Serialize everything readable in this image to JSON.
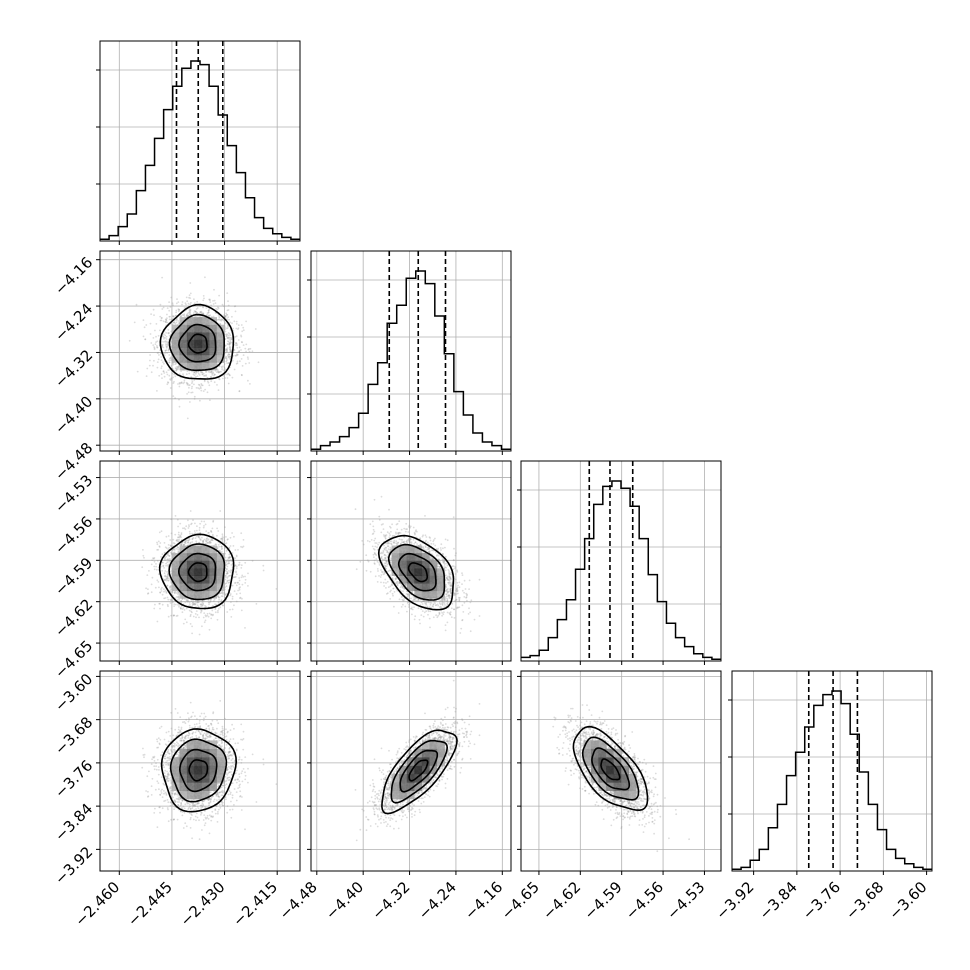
{
  "chart_data": {
    "type": "corner",
    "n_params": 4,
    "param_labels": [
      "",
      "",
      "",
      ""
    ],
    "tick_labels": [
      [
        "−2.460",
        "−2.445",
        "−2.430",
        "−2.415"
      ],
      [
        "−4.48",
        "−4.40",
        "−4.32",
        "−4.24",
        "−4.16"
      ],
      [
        "−4.65",
        "−4.62",
        "−4.59",
        "−4.56",
        "−4.53"
      ],
      [
        "−3.92",
        "−3.84",
        "−3.76",
        "−3.68",
        "−3.60"
      ]
    ],
    "tick_values": [
      [
        -2.46,
        -2.445,
        -2.43,
        -2.415
      ],
      [
        -4.48,
        -4.4,
        -4.32,
        -4.24,
        -4.16
      ],
      [
        -4.65,
        -4.62,
        -4.59,
        -4.56,
        -4.53
      ],
      [
        -3.92,
        -3.84,
        -3.76,
        -3.68,
        -3.6
      ]
    ],
    "axis_ranges": [
      [
        -2.4655,
        -2.4085
      ],
      [
        -4.49,
        -4.145
      ],
      [
        -4.663,
        -4.518
      ],
      [
        -3.96,
        -3.59
      ]
    ],
    "histograms": [
      {
        "bin_edges_range": [
          -2.4655,
          -2.4085
        ],
        "heights": [
          0.01,
          0.03,
          0.08,
          0.15,
          0.28,
          0.42,
          0.57,
          0.73,
          0.86,
          0.96,
          1.0,
          0.98,
          0.86,
          0.7,
          0.53,
          0.38,
          0.24,
          0.13,
          0.07,
          0.04,
          0.02,
          0.01
        ],
        "quantiles": [
          -2.4437,
          -2.4375,
          -2.4305
        ]
      },
      {
        "bin_edges_range": [
          -4.49,
          -4.145
        ],
        "heights": [
          0.01,
          0.03,
          0.05,
          0.08,
          0.13,
          0.21,
          0.37,
          0.49,
          0.71,
          0.81,
          0.96,
          1.0,
          0.93,
          0.75,
          0.54,
          0.33,
          0.2,
          0.1,
          0.05,
          0.03,
          0.01
        ],
        "quantiles": [
          -4.355,
          -4.305,
          -4.258
        ]
      },
      {
        "bin_edges_range": [
          -4.663,
          -4.518
        ],
        "heights": [
          0.02,
          0.03,
          0.06,
          0.13,
          0.23,
          0.34,
          0.51,
          0.68,
          0.87,
          0.97,
          1.0,
          0.96,
          0.86,
          0.68,
          0.48,
          0.33,
          0.21,
          0.13,
          0.08,
          0.04,
          0.02,
          0.01
        ],
        "quantiles": [
          -4.6135,
          -4.5985,
          -4.582
        ]
      },
      {
        "bin_edges_range": [
          -3.96,
          -3.59
        ],
        "heights": [
          0.01,
          0.02,
          0.06,
          0.12,
          0.24,
          0.37,
          0.53,
          0.66,
          0.8,
          0.92,
          0.98,
          1.0,
          0.93,
          0.76,
          0.55,
          0.37,
          0.23,
          0.12,
          0.07,
          0.04,
          0.02,
          0.01
        ],
        "quantiles": [
          -3.818,
          -3.773,
          -3.728
        ]
      }
    ],
    "pairs": [
      {
        "x_param": 0,
        "y_param": 1,
        "center": [
          -2.4375,
          -4.305
        ],
        "sd": [
          0.0052,
          0.032
        ],
        "corr": 0.0
      },
      {
        "x_param": 0,
        "y_param": 2,
        "center": [
          -2.4375,
          -4.5985
        ],
        "sd": [
          0.0052,
          0.0134
        ],
        "corr": 0.0
      },
      {
        "x_param": 1,
        "y_param": 2,
        "center": [
          -4.305,
          -4.5985
        ],
        "sd": [
          0.032,
          0.0134
        ],
        "corr": -0.45
      },
      {
        "x_param": 0,
        "y_param": 3,
        "center": [
          -2.4375,
          -3.773
        ],
        "sd": [
          0.0052,
          0.038
        ],
        "corr": 0.05
      },
      {
        "x_param": 1,
        "y_param": 3,
        "center": [
          -4.305,
          -3.773
        ],
        "sd": [
          0.032,
          0.038
        ],
        "corr": 0.72
      },
      {
        "x_param": 2,
        "y_param": 3,
        "center": [
          -4.5985,
          -3.773
        ],
        "sd": [
          0.0134,
          0.038
        ],
        "corr": -0.62
      }
    ],
    "contour_levels_sigma": [
      0.5,
      1.0,
      1.5,
      2.0
    ],
    "grid": true,
    "show_quantile_lines": true
  }
}
